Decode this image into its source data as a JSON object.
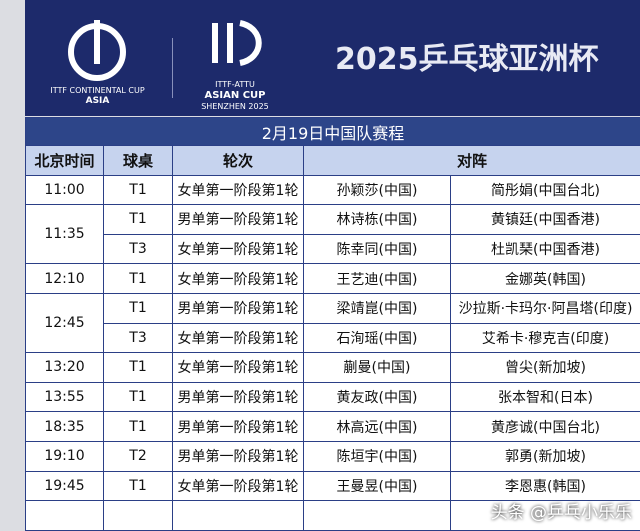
{
  "header": {
    "logo1_line1": "ITTF CONTINENTAL CUP",
    "logo1_line2": "ASIA",
    "logo2_line1": "ITTF-ATTU",
    "logo2_line2": "ASIAN CUP",
    "logo2_line3": "SHENZHEN 2025",
    "title": "2025乒乓球亚洲杯"
  },
  "table": {
    "title": "2月19日中国队赛程",
    "columns": [
      "北京时间",
      "球桌",
      "轮次",
      "对阵"
    ],
    "groups": [
      {
        "time": "11:00",
        "matches": [
          [
            "T1",
            "女单第一阶段第1轮",
            "孙颖莎(中国)",
            "简彤娟(中国台北)"
          ]
        ]
      },
      {
        "time": "11:35",
        "matches": [
          [
            "T1",
            "男单第一阶段第1轮",
            "林诗栋(中国)",
            "黄镇廷(中国香港)"
          ],
          [
            "T3",
            "女单第一阶段第1轮",
            "陈幸同(中国)",
            "杜凯琹(中国香港)"
          ]
        ]
      },
      {
        "time": "12:10",
        "matches": [
          [
            "T1",
            "女单第一阶段第1轮",
            "王艺迪(中国)",
            "金娜英(韩国)"
          ]
        ]
      },
      {
        "time": "12:45",
        "matches": [
          [
            "T1",
            "男单第一阶段第1轮",
            "梁靖崑(中国)",
            "沙拉斯·卡玛尔·阿昌塔(印度)"
          ],
          [
            "T3",
            "女单第一阶段第1轮",
            "石洵瑶(中国)",
            "艾希卡·穆克吉(印度)"
          ]
        ]
      },
      {
        "time": "13:20",
        "matches": [
          [
            "T1",
            "女单第一阶段第1轮",
            "蒯曼(中国)",
            "曾尖(新加坡)"
          ]
        ]
      },
      {
        "time": "13:55",
        "matches": [
          [
            "T1",
            "男单第一阶段第1轮",
            "黄友政(中国)",
            "张本智和(日本)"
          ]
        ]
      },
      {
        "time": "18:35",
        "matches": [
          [
            "T1",
            "男单第一阶段第1轮",
            "林高远(中国)",
            "黄彦诚(中国台北)"
          ]
        ]
      },
      {
        "time": "19:10",
        "matches": [
          [
            "T2",
            "男单第一阶段第1轮",
            "陈垣宇(中国)",
            "郭勇(新加坡)"
          ]
        ]
      },
      {
        "time": "19:45",
        "matches": [
          [
            "T1",
            "女单第一阶段第1轮",
            "王曼昱(中国)",
            "李恩惠(韩国)"
          ]
        ]
      }
    ]
  },
  "watermark": "头条 @乒乓小乐乐"
}
